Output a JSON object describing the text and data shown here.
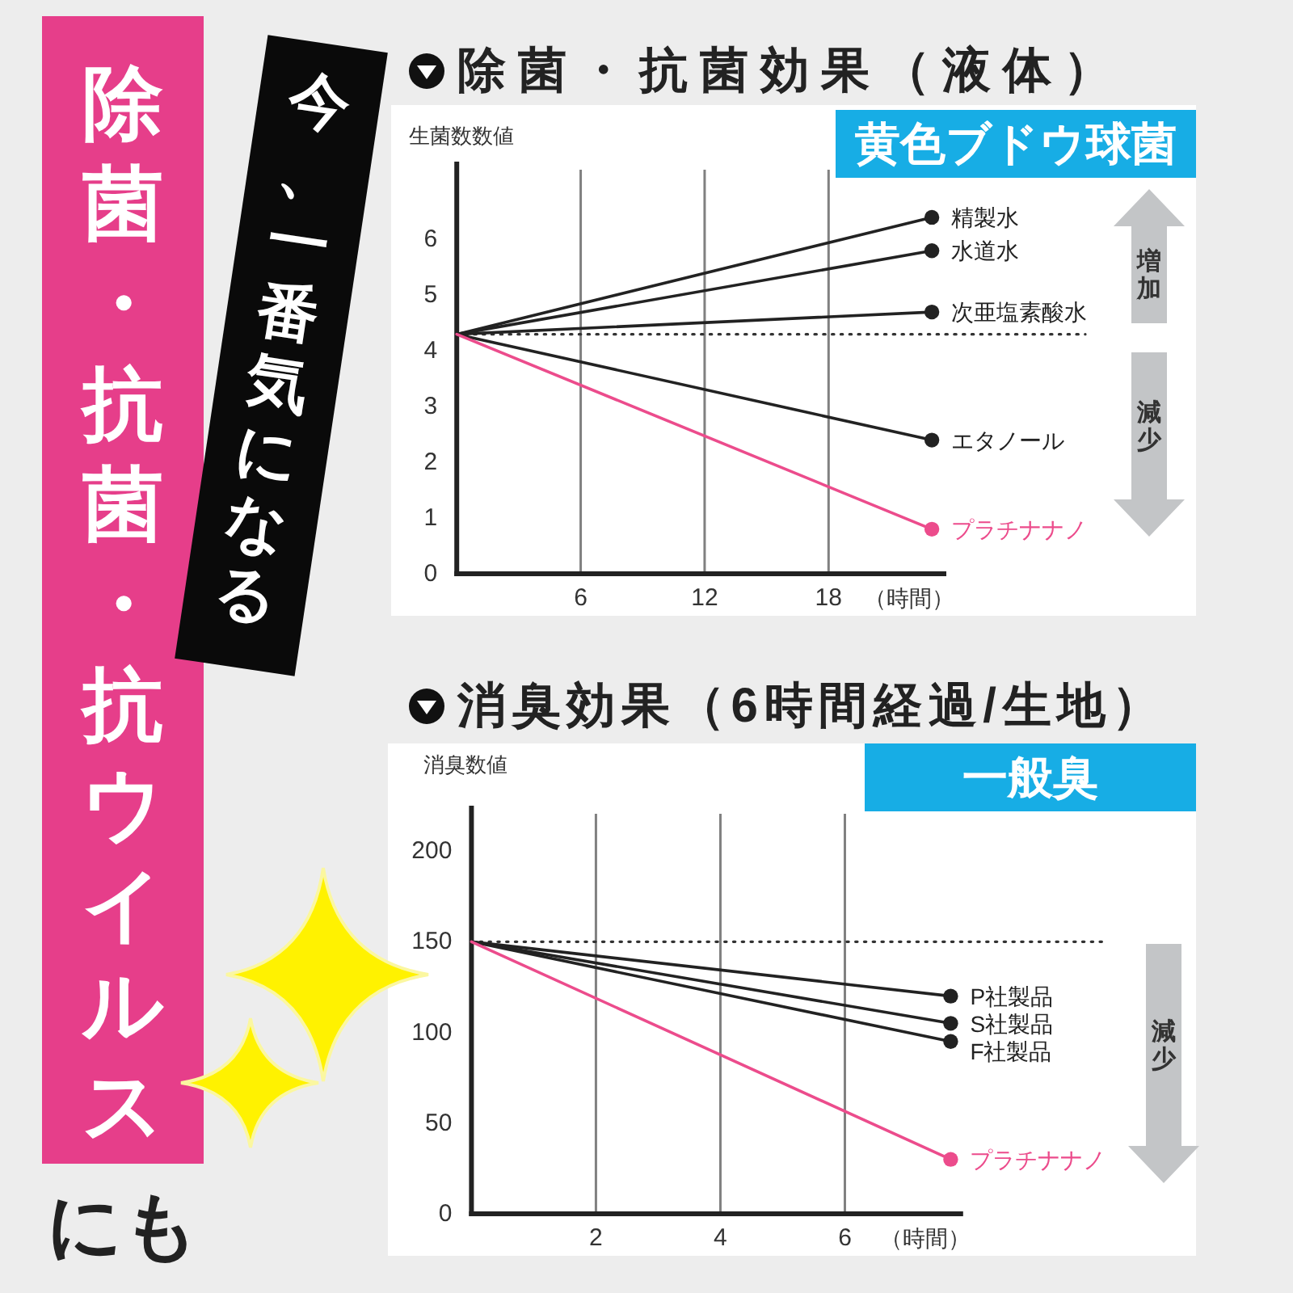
{
  "chart_data": [
    {
      "type": "other",
      "annotations": [
        "除菌・抗菌・抗ウイルス",
        "にも",
        "今、一番気になる"
      ]
    },
    {
      "type": "line",
      "title": "除菌・抗菌効果（液体）",
      "subtitle": "黄色ブドウ球菌",
      "xlabel": "（時間）",
      "ylabel": "生菌数数値",
      "xlim": [
        0,
        23.7
      ],
      "xticks": [
        6,
        12,
        18
      ],
      "ylim": [
        0,
        7.4
      ],
      "yticks": [
        0,
        1,
        2,
        3,
        4,
        5,
        6
      ],
      "grid": "x",
      "marker": "circle",
      "series": [
        {
          "name": "精製水",
          "color": "#222222",
          "x": [
            0,
            23
          ],
          "values": [
            4.3,
            6.4
          ]
        },
        {
          "name": "水道水",
          "color": "#222222",
          "x": [
            0,
            23
          ],
          "values": [
            4.3,
            5.8
          ]
        },
        {
          "name": "次亜塩素酸水",
          "color": "#222222",
          "x": [
            0,
            23
          ],
          "values": [
            4.3,
            4.7
          ]
        },
        {
          "name": "エタノール",
          "color": "#222222",
          "x": [
            0,
            23
          ],
          "values": [
            4.3,
            2.4
          ]
        },
        {
          "name": "プラチナナノ",
          "color": "#ec4c8c",
          "x": [
            0,
            23
          ],
          "values": [
            4.3,
            0.8
          ]
        }
      ],
      "ref_lines": [
        {
          "axis": "y",
          "value": 4.3,
          "color": "#333333",
          "line_style": "dotted"
        }
      ],
      "annotations": [
        "増加",
        "減少"
      ]
    },
    {
      "type": "line",
      "title": "消臭効果（6時間経過/生地）",
      "subtitle": "一般臭",
      "xlabel": "（時間）",
      "ylabel": "消臭数値",
      "xlim": [
        0,
        7.9
      ],
      "xticks": [
        2,
        4,
        6
      ],
      "ylim": [
        0,
        225
      ],
      "yticks": [
        0,
        50,
        100,
        150,
        200
      ],
      "grid": "x",
      "marker": "circle",
      "series": [
        {
          "name": "P社製品",
          "color": "#222222",
          "x": [
            0,
            7.7
          ],
          "values": [
            150,
            120
          ]
        },
        {
          "name": "S社製品",
          "color": "#222222",
          "x": [
            0,
            7.7
          ],
          "values": [
            150,
            105
          ]
        },
        {
          "name": "F社製品",
          "color": "#222222",
          "x": [
            0,
            7.7
          ],
          "values": [
            150,
            95
          ]
        },
        {
          "name": "プラチナナノ",
          "color": "#ec4c8c",
          "x": [
            0,
            7.7
          ],
          "values": [
            150,
            30
          ]
        }
      ],
      "ref_lines": [
        {
          "axis": "y",
          "value": 150,
          "color": "#333333",
          "line_style": "dotted"
        }
      ],
      "annotations": [
        "減少"
      ]
    }
  ]
}
